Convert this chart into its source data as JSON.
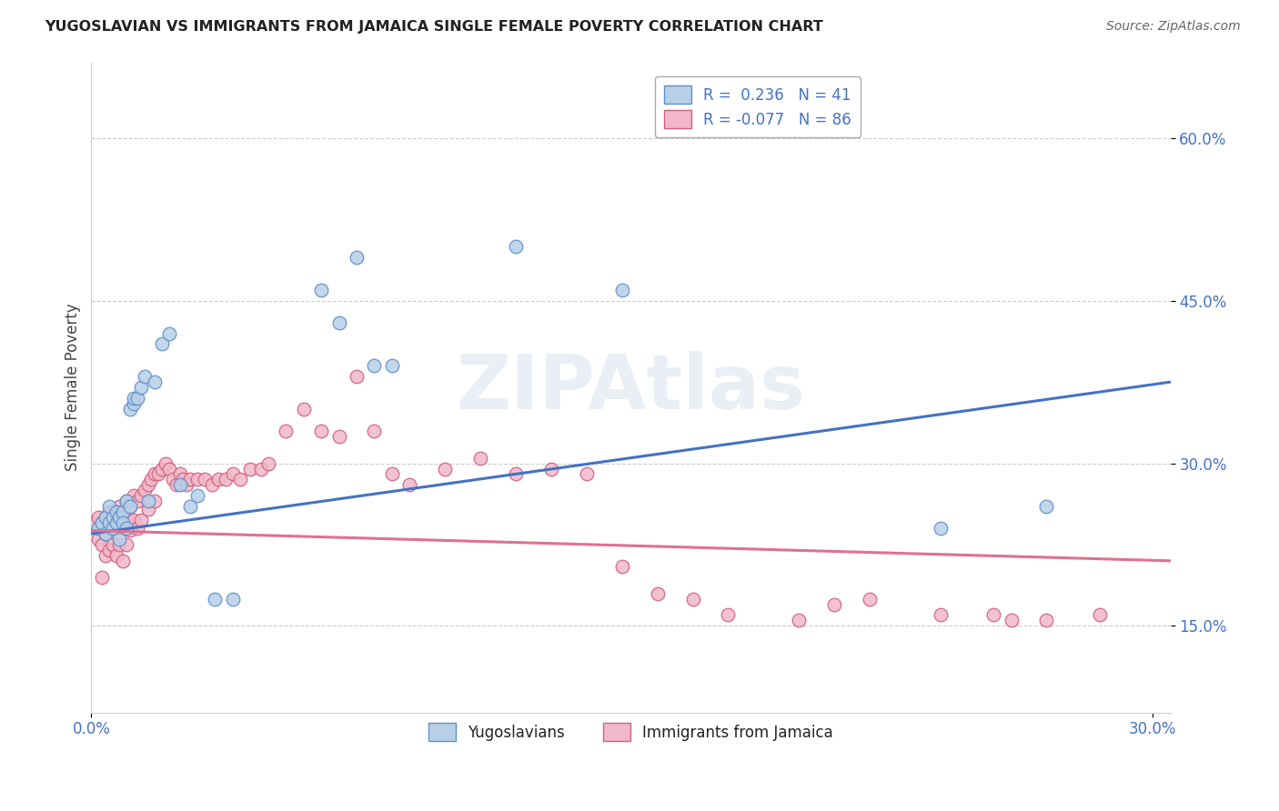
{
  "title": "YUGOSLAVIAN VS IMMIGRANTS FROM JAMAICA SINGLE FEMALE POVERTY CORRELATION CHART",
  "source": "Source: ZipAtlas.com",
  "ylabel": "Single Female Poverty",
  "y_labels": [
    "15.0%",
    "30.0%",
    "45.0%",
    "60.0%"
  ],
  "y_ticks": [
    0.15,
    0.3,
    0.45,
    0.6
  ],
  "x_tick_labels": [
    "0.0%",
    "30.0%"
  ],
  "x_ticks": [
    0.0,
    0.3
  ],
  "xlim": [
    0.0,
    0.305
  ],
  "ylim": [
    0.07,
    0.67
  ],
  "blue_line_color": "#4472c4",
  "pink_line_color": "#e07090",
  "blue_dot_face": "#b8cfe8",
  "blue_dot_edge": "#6090c8",
  "pink_dot_face": "#f0b8c8",
  "pink_dot_edge": "#d06080",
  "watermark": "ZIPAtlas",
  "background_color": "#ffffff",
  "grid_color": "#cccccc",
  "blue_R": 0.236,
  "pink_R": -0.077,
  "blue_N": 41,
  "pink_N": 86,
  "blue_trend_y0": 0.235,
  "blue_trend_y1": 0.375,
  "pink_trend_y0": 0.238,
  "pink_trend_y1": 0.21,
  "blue_scatter_x": [
    0.002,
    0.003,
    0.004,
    0.004,
    0.005,
    0.005,
    0.006,
    0.006,
    0.007,
    0.007,
    0.008,
    0.008,
    0.009,
    0.009,
    0.01,
    0.01,
    0.011,
    0.011,
    0.012,
    0.012,
    0.013,
    0.014,
    0.015,
    0.016,
    0.018,
    0.02,
    0.022,
    0.025,
    0.028,
    0.03,
    0.035,
    0.04,
    0.065,
    0.07,
    0.075,
    0.08,
    0.085,
    0.12,
    0.15,
    0.24,
    0.27
  ],
  "blue_scatter_y": [
    0.24,
    0.245,
    0.25,
    0.235,
    0.245,
    0.26,
    0.25,
    0.24,
    0.255,
    0.245,
    0.23,
    0.25,
    0.255,
    0.245,
    0.265,
    0.24,
    0.26,
    0.35,
    0.355,
    0.36,
    0.36,
    0.37,
    0.38,
    0.265,
    0.375,
    0.41,
    0.42,
    0.28,
    0.26,
    0.27,
    0.175,
    0.175,
    0.46,
    0.43,
    0.49,
    0.39,
    0.39,
    0.5,
    0.46,
    0.24,
    0.26
  ],
  "pink_scatter_x": [
    0.001,
    0.002,
    0.002,
    0.003,
    0.003,
    0.003,
    0.004,
    0.004,
    0.004,
    0.005,
    0.005,
    0.005,
    0.006,
    0.006,
    0.006,
    0.007,
    0.007,
    0.007,
    0.008,
    0.008,
    0.008,
    0.009,
    0.009,
    0.009,
    0.01,
    0.01,
    0.01,
    0.011,
    0.011,
    0.012,
    0.012,
    0.013,
    0.013,
    0.014,
    0.014,
    0.015,
    0.016,
    0.016,
    0.017,
    0.018,
    0.018,
    0.019,
    0.02,
    0.021,
    0.022,
    0.023,
    0.024,
    0.025,
    0.026,
    0.027,
    0.028,
    0.03,
    0.032,
    0.034,
    0.036,
    0.038,
    0.04,
    0.042,
    0.045,
    0.048,
    0.05,
    0.055,
    0.06,
    0.065,
    0.07,
    0.075,
    0.08,
    0.085,
    0.09,
    0.1,
    0.11,
    0.12,
    0.13,
    0.14,
    0.15,
    0.16,
    0.17,
    0.18,
    0.2,
    0.21,
    0.22,
    0.24,
    0.255,
    0.26,
    0.27,
    0.285
  ],
  "pink_scatter_y": [
    0.245,
    0.25,
    0.23,
    0.245,
    0.225,
    0.195,
    0.25,
    0.235,
    0.215,
    0.255,
    0.24,
    0.22,
    0.255,
    0.245,
    0.225,
    0.255,
    0.24,
    0.215,
    0.26,
    0.245,
    0.225,
    0.255,
    0.24,
    0.21,
    0.265,
    0.248,
    0.225,
    0.26,
    0.238,
    0.27,
    0.248,
    0.265,
    0.24,
    0.27,
    0.248,
    0.275,
    0.28,
    0.258,
    0.285,
    0.29,
    0.265,
    0.29,
    0.295,
    0.3,
    0.295,
    0.285,
    0.28,
    0.29,
    0.285,
    0.28,
    0.285,
    0.285,
    0.285,
    0.28,
    0.285,
    0.285,
    0.29,
    0.285,
    0.295,
    0.295,
    0.3,
    0.33,
    0.35,
    0.33,
    0.325,
    0.38,
    0.33,
    0.29,
    0.28,
    0.295,
    0.305,
    0.29,
    0.295,
    0.29,
    0.205,
    0.18,
    0.175,
    0.16,
    0.155,
    0.17,
    0.175,
    0.16,
    0.16,
    0.155,
    0.155,
    0.16
  ],
  "legend_label_blue": "R =  0.236   N = 41",
  "legend_label_pink": "R = -0.077   N = 86",
  "legend_label_yug": "Yugoslavians",
  "legend_label_jam": "Immigrants from Jamaica"
}
